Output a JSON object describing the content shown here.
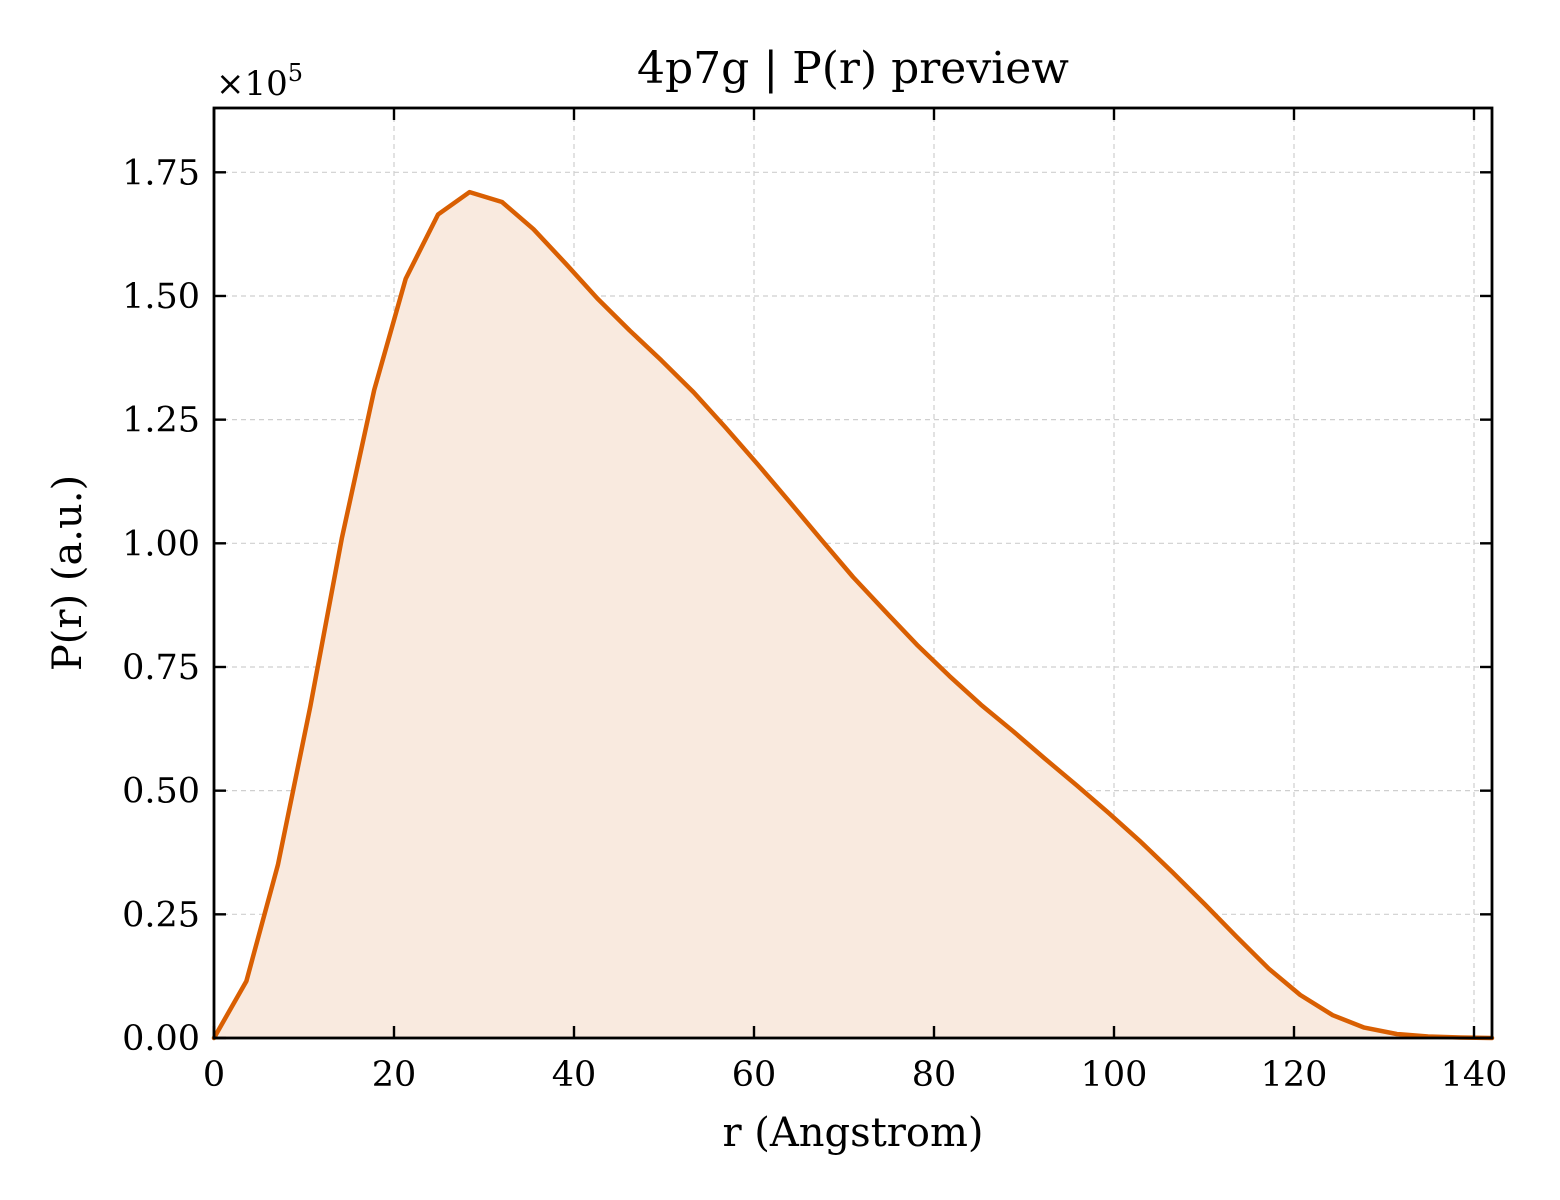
{
  "chart_data": {
    "type": "area",
    "title": "4p7g | P(r) preview",
    "xlabel": "r (Angstrom)",
    "ylabel": "P(r) (a.u.)",
    "y_multiplier": "×10",
    "y_multiplier_exponent": "5",
    "xlim": [
      0,
      142
    ],
    "ylim": [
      0,
      1.88
    ],
    "x_ticks": [
      0,
      20,
      40,
      60,
      80,
      100,
      120,
      140
    ],
    "x_tick_labels": [
      "0",
      "20",
      "40",
      "60",
      "80",
      "100",
      "120",
      "140"
    ],
    "y_ticks": [
      0,
      0.25,
      0.5,
      0.75,
      1.0,
      1.25,
      1.5,
      1.75
    ],
    "y_tick_labels": [
      "0.00",
      "0.25",
      "0.50",
      "0.75",
      "1.00",
      "1.25",
      "1.50",
      "1.75"
    ],
    "grid": true,
    "series": [
      {
        "color": "#d95f02",
        "fill_color": "#f9eadf",
        "x": [
          0,
          3.6,
          7.1,
          10.7,
          14.2,
          17.8,
          21.3,
          24.9,
          28.4,
          32.0,
          35.5,
          39.1,
          42.6,
          46.2,
          49.7,
          53.3,
          56.8,
          60.4,
          63.9,
          67.5,
          71.0,
          74.6,
          78.1,
          81.7,
          85.2,
          88.8,
          92.3,
          95.9,
          99.4,
          103.0,
          106.5,
          110.1,
          113.6,
          117.2,
          120.7,
          124.3,
          127.8,
          131.4,
          134.9,
          138.5,
          142.0
        ],
        "y": [
          0.0,
          0.115,
          0.35,
          0.67,
          1.01,
          1.31,
          1.535,
          1.665,
          1.71,
          1.69,
          1.635,
          1.565,
          1.495,
          1.43,
          1.37,
          1.305,
          1.235,
          1.16,
          1.085,
          1.007,
          0.932,
          0.862,
          0.795,
          0.732,
          0.674,
          0.62,
          0.565,
          0.51,
          0.455,
          0.396,
          0.335,
          0.27,
          0.205,
          0.14,
          0.087,
          0.046,
          0.021,
          0.008,
          0.003,
          0.001,
          0.0
        ]
      }
    ]
  }
}
